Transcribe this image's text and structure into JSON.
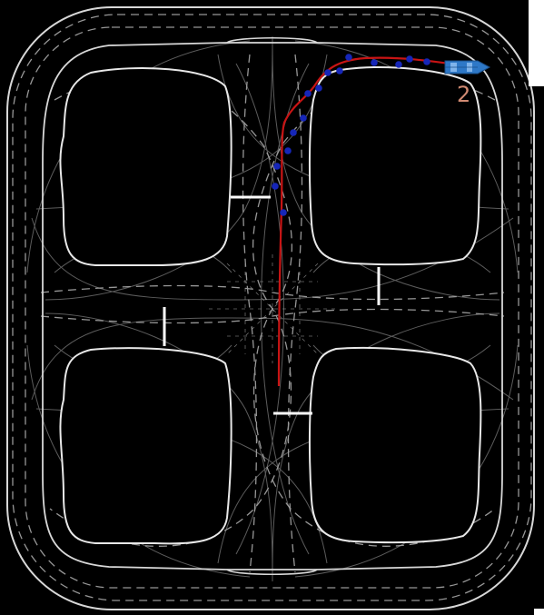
{
  "scene": {
    "type": "road-network-trajectory-map",
    "background_color": "#000000",
    "road_boundary_color": "#d8d8d8",
    "lane_divider_color": "#bdbdbd",
    "stop_line_color": "#ffffff",
    "trajectory_color": "#c81414",
    "waypoint_color": "#1626b8",
    "vehicle_color": "#2e78c7"
  },
  "vehicle": {
    "id_label": "2",
    "label_color": "#d08a72",
    "heading": "east",
    "icon": "car-icon"
  }
}
